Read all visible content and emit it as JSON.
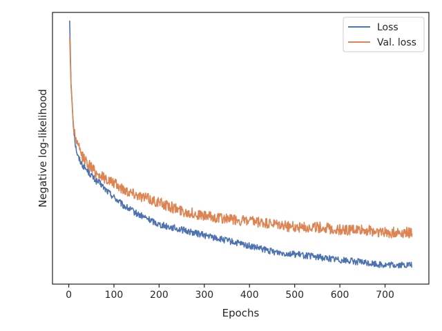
{
  "chart_data": {
    "type": "line",
    "title": "",
    "xlabel": "Epochs",
    "ylabel": "Negative log-likelihood",
    "xlim": [
      -36,
      797
    ],
    "ylim": [
      0,
      1
    ],
    "y_ticks_shown": false,
    "grid": false,
    "legend_position": "top-right",
    "x_ticks": [
      0,
      100,
      200,
      300,
      400,
      500,
      600,
      700
    ],
    "x_tick_labels": [
      "0",
      "100",
      "200",
      "300",
      "400",
      "500",
      "600",
      "700"
    ],
    "series": [
      {
        "name": "Loss",
        "color": "#4c72b0",
        "x": [
          2,
          5,
          10,
          15,
          20,
          30,
          40,
          50,
          60,
          70,
          80,
          100,
          120,
          150,
          200,
          250,
          300,
          350,
          400,
          450,
          500,
          550,
          600,
          650,
          700,
          760
        ],
        "y": [
          0.97,
          0.74,
          0.59,
          0.51,
          0.47,
          0.44,
          0.42,
          0.4,
          0.38,
          0.37,
          0.35,
          0.32,
          0.29,
          0.26,
          0.22,
          0.2,
          0.18,
          0.16,
          0.14,
          0.12,
          0.11,
          0.1,
          0.09,
          0.08,
          0.07,
          0.07
        ]
      },
      {
        "name": "Val. loss",
        "color": "#dd8452",
        "x": [
          2,
          5,
          10,
          15,
          20,
          30,
          40,
          50,
          60,
          70,
          80,
          100,
          120,
          150,
          200,
          250,
          300,
          350,
          400,
          450,
          500,
          550,
          600,
          650,
          700,
          760
        ],
        "y": [
          0.91,
          0.73,
          0.59,
          0.54,
          0.51,
          0.47,
          0.45,
          0.43,
          0.41,
          0.4,
          0.39,
          0.37,
          0.35,
          0.33,
          0.3,
          0.27,
          0.25,
          0.24,
          0.23,
          0.22,
          0.21,
          0.21,
          0.2,
          0.2,
          0.19,
          0.19
        ]
      }
    ]
  }
}
